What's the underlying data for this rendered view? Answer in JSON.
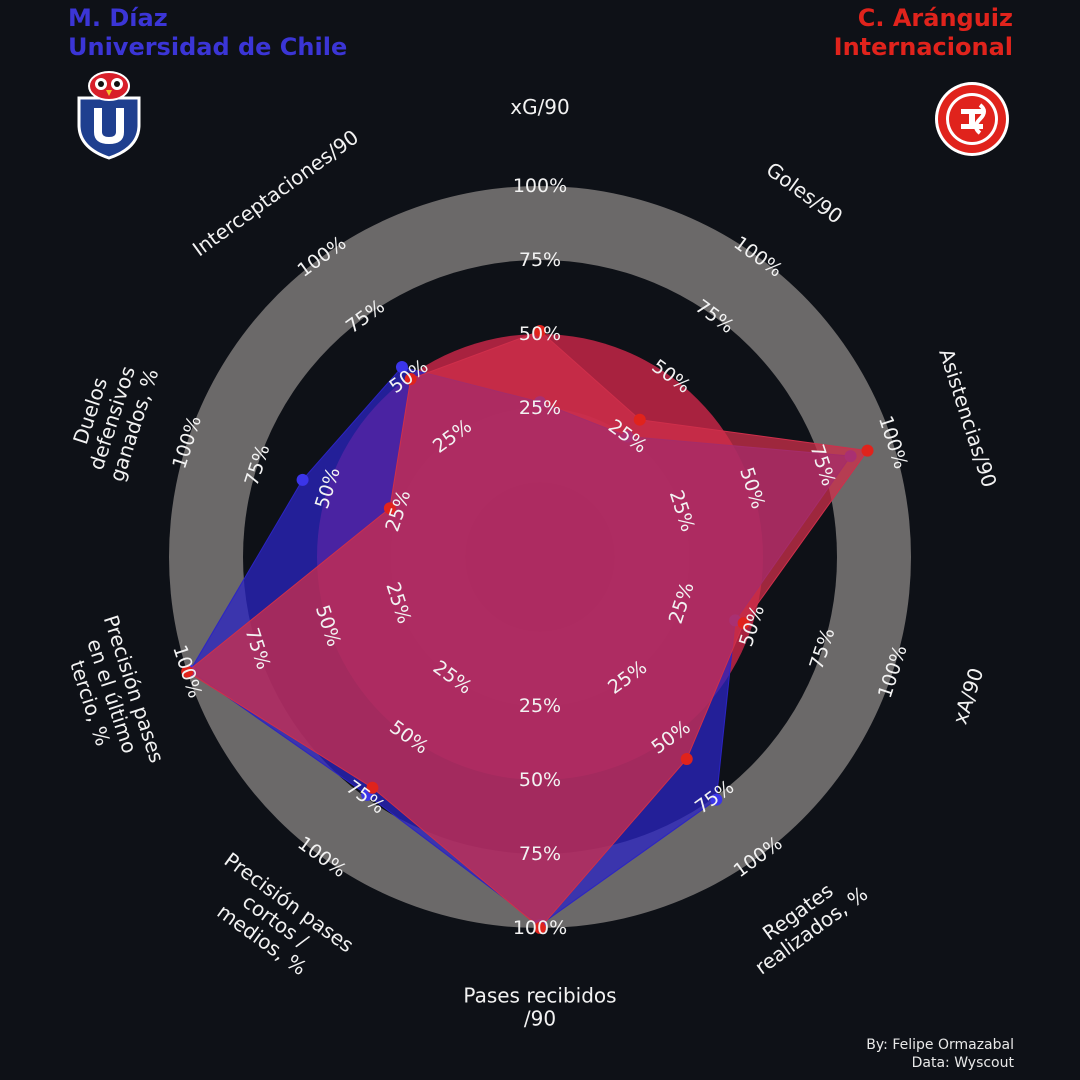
{
  "players": {
    "left": {
      "name": "M. Díaz",
      "team": "Universidad de Chile",
      "color": "#3b35d6",
      "badge": "universidad-de-chile-crest"
    },
    "right": {
      "name": "C. Aránguiz",
      "team": "Internacional",
      "color": "#e0231c",
      "badge": "internacional-crest"
    }
  },
  "credits": {
    "by": "By: Felipe Ormazabal",
    "data": "Data: Wyscout"
  },
  "colors": {
    "background": "#0e1117",
    "ring_dark": "#0e1117",
    "ring_grey": "#6b6969",
    "inner_rings": [
      "#a8223f",
      "#b92e4f",
      "#a8223f",
      "#b92e4f"
    ],
    "blue_fill": "#2b24c4",
    "red_fill": "#cf2f4b"
  },
  "chart_data": {
    "type": "radar",
    "axes": [
      {
        "label": "xG/90",
        "lines": [
          "xG/90"
        ]
      },
      {
        "label": "Goles/90",
        "lines": [
          "Goles/90"
        ]
      },
      {
        "label": "Asistencias/90",
        "lines": [
          "Asistencias/90"
        ]
      },
      {
        "label": "xA/90",
        "lines": [
          "xA/90"
        ]
      },
      {
        "label": "Regates realizados, %",
        "lines": [
          "Regates",
          "realizados, %"
        ]
      },
      {
        "label": "Pases recibidos /90",
        "lines": [
          "Pases recibidos",
          "/90"
        ]
      },
      {
        "label": "Precisión pases cortos / medios, %",
        "lines": [
          "Precisión pases",
          "cortos /",
          "medios, %"
        ]
      },
      {
        "label": "Precisión pases en el último tercio, %",
        "lines": [
          "Precisión pases",
          "en el último",
          "tercio, %"
        ]
      },
      {
        "label": "Duelos defensivos ganados, %",
        "lines": [
          "Duelos",
          "defensivos",
          "ganados, %"
        ]
      },
      {
        "label": "Interceptaciones/90",
        "lines": [
          "Interceptaciones/90"
        ]
      }
    ],
    "tick_labels": [
      "25%",
      "50%",
      "75%",
      "100%"
    ],
    "series": [
      {
        "name": "M. Díaz",
        "values": [
          27,
          25,
          85,
          44,
          76,
          99,
          74,
          99,
          59,
          54
        ]
      },
      {
        "name": "C. Aránguiz",
        "values": [
          51,
          32,
          91,
          47,
          59,
          100,
          71,
          100,
          28,
          49
        ]
      }
    ]
  }
}
